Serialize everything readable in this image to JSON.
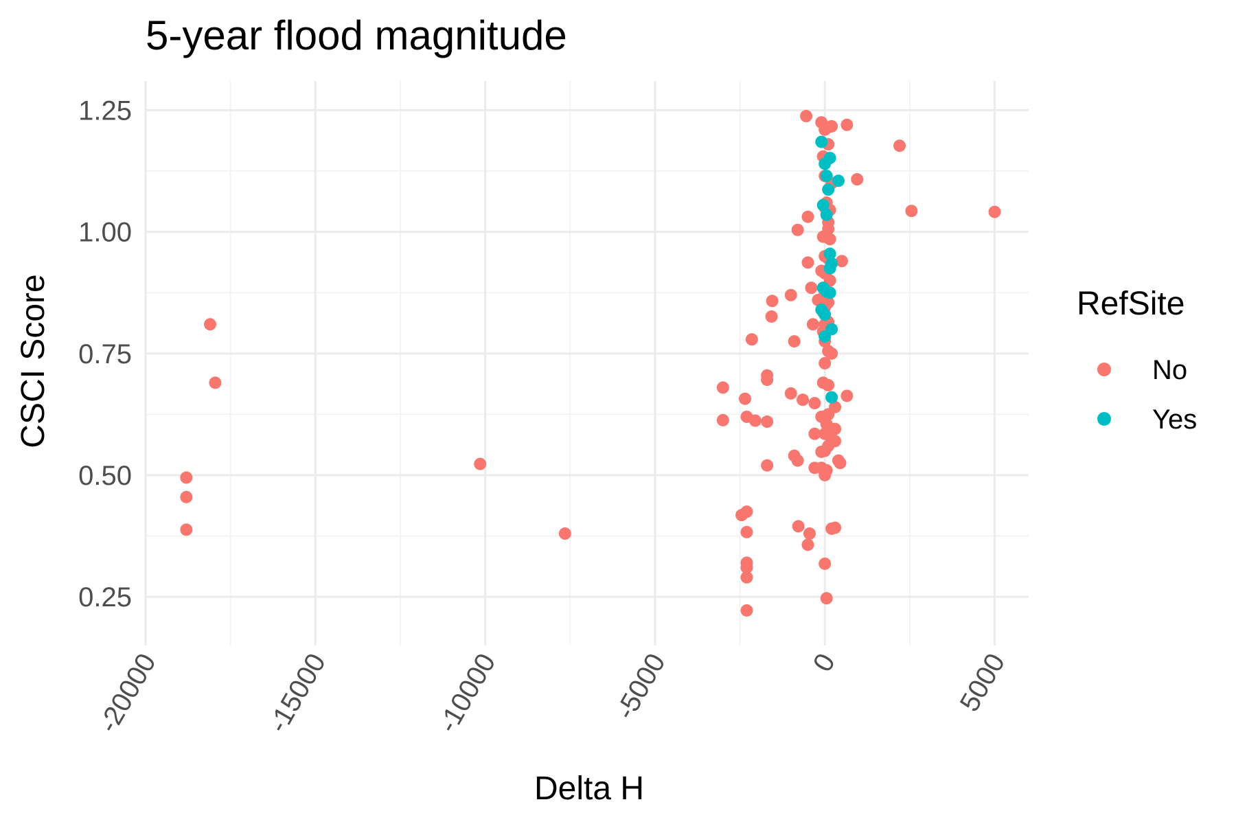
{
  "chart_data": {
    "type": "scatter",
    "title": "5-year flood magnitude",
    "xlabel": "Delta H",
    "ylabel": "CSCI Score",
    "xlim": [
      -20000,
      6000
    ],
    "ylim": [
      0.15,
      1.31
    ],
    "xticks": [
      -20000,
      -15000,
      -10000,
      -5000,
      0,
      5000
    ],
    "xtick_labels": [
      "-20000",
      "-15000",
      "-10000",
      "-5000",
      "0",
      "5000"
    ],
    "yticks": [
      0.25,
      0.5,
      0.75,
      1.0,
      1.25
    ],
    "ytick_labels": [
      "0.25",
      "0.50",
      "0.75",
      "1.00",
      "1.25"
    ],
    "grid": true,
    "legend": {
      "title": "RefSite",
      "position": "right"
    },
    "series": [
      {
        "name": "No",
        "color": "#F8766D",
        "points": [
          [
            -18100,
            0.81
          ],
          [
            -17950,
            0.69
          ],
          [
            -18800,
            0.495
          ],
          [
            -18800,
            0.455
          ],
          [
            -18800,
            0.388
          ],
          [
            -10150,
            0.523
          ],
          [
            -7650,
            0.38
          ],
          [
            -3000,
            0.68
          ],
          [
            -3000,
            0.613
          ],
          [
            -2450,
            0.418
          ],
          [
            -2300,
            0.425
          ],
          [
            -2300,
            0.383
          ],
          [
            -2300,
            0.32
          ],
          [
            -2300,
            0.31
          ],
          [
            -2300,
            0.29
          ],
          [
            -2300,
            0.222
          ],
          [
            -2350,
            0.657
          ],
          [
            -2300,
            0.62
          ],
          [
            -2050,
            0.612
          ],
          [
            -2150,
            0.779
          ],
          [
            -1700,
            0.705
          ],
          [
            -1700,
            0.696
          ],
          [
            -1700,
            0.61
          ],
          [
            -1700,
            0.52
          ],
          [
            -1550,
            0.858
          ],
          [
            -1570,
            0.826
          ],
          [
            -1000,
            0.87
          ],
          [
            -900,
            0.775
          ],
          [
            -1000,
            0.668
          ],
          [
            -900,
            0.54
          ],
          [
            -800,
            0.53
          ],
          [
            -780,
            0.395
          ],
          [
            -800,
            1.004
          ],
          [
            -500,
            1.031
          ],
          [
            -550,
            1.238
          ],
          [
            -500,
            0.937
          ],
          [
            -400,
            0.885
          ],
          [
            -350,
            0.81
          ],
          [
            -450,
            0.38
          ],
          [
            -500,
            0.357
          ],
          [
            -650,
            0.655
          ],
          [
            -300,
            0.648
          ],
          [
            -300,
            0.585
          ],
          [
            -300,
            0.515
          ],
          [
            -100,
            1.225
          ],
          [
            0,
            1.21
          ],
          [
            100,
            1.215
          ],
          [
            200,
            1.217
          ],
          [
            650,
            1.22
          ],
          [
            100,
            1.18
          ],
          [
            -50,
            1.155
          ],
          [
            100,
            1.15
          ],
          [
            0,
            1.115
          ],
          [
            200,
            1.1
          ],
          [
            950,
            1.108
          ],
          [
            2200,
            1.177
          ],
          [
            2550,
            1.043
          ],
          [
            5000,
            1.041
          ],
          [
            50,
            1.06
          ],
          [
            150,
            1.045
          ],
          [
            0,
            1.05
          ],
          [
            100,
            1.02
          ],
          [
            100,
            1.006
          ],
          [
            -50,
            0.99
          ],
          [
            150,
            0.985
          ],
          [
            0,
            0.95
          ],
          [
            100,
            0.945
          ],
          [
            500,
            0.94
          ],
          [
            -100,
            0.92
          ],
          [
            0,
            0.915
          ],
          [
            150,
            0.9
          ],
          [
            -50,
            0.885
          ],
          [
            0,
            0.875
          ],
          [
            -200,
            0.86
          ],
          [
            -100,
            0.855
          ],
          [
            100,
            0.855
          ],
          [
            0,
            0.845
          ],
          [
            -50,
            0.835
          ],
          [
            0,
            0.81
          ],
          [
            100,
            0.815
          ],
          [
            -50,
            0.795
          ],
          [
            0,
            0.775
          ],
          [
            100,
            0.755
          ],
          [
            200,
            0.75
          ],
          [
            0,
            0.73
          ],
          [
            -50,
            0.69
          ],
          [
            100,
            0.685
          ],
          [
            650,
            0.663
          ],
          [
            300,
            0.64
          ],
          [
            100,
            0.625
          ],
          [
            -100,
            0.62
          ],
          [
            50,
            0.605
          ],
          [
            300,
            0.595
          ],
          [
            0,
            0.585
          ],
          [
            200,
            0.575
          ],
          [
            300,
            0.57
          ],
          [
            100,
            0.56
          ],
          [
            0,
            0.55
          ],
          [
            -100,
            0.548
          ],
          [
            400,
            0.53
          ],
          [
            450,
            0.525
          ],
          [
            50,
            0.51
          ],
          [
            -100,
            0.515
          ],
          [
            0,
            0.5
          ],
          [
            200,
            0.39
          ],
          [
            300,
            0.392
          ],
          [
            0,
            0.318
          ],
          [
            50,
            0.247
          ]
        ]
      },
      {
        "name": "Yes",
        "color": "#00BFC4",
        "points": [
          [
            -100,
            1.185
          ],
          [
            150,
            1.152
          ],
          [
            0,
            1.14
          ],
          [
            50,
            1.115
          ],
          [
            400,
            1.105
          ],
          [
            100,
            1.087
          ],
          [
            -50,
            1.055
          ],
          [
            50,
            1.035
          ],
          [
            150,
            0.955
          ],
          [
            200,
            0.935
          ],
          [
            150,
            0.925
          ],
          [
            -50,
            0.885
          ],
          [
            50,
            0.877
          ],
          [
            150,
            0.875
          ],
          [
            -100,
            0.84
          ],
          [
            0,
            0.83
          ],
          [
            200,
            0.8
          ],
          [
            0,
            0.785
          ],
          [
            200,
            0.66
          ]
        ]
      }
    ]
  }
}
